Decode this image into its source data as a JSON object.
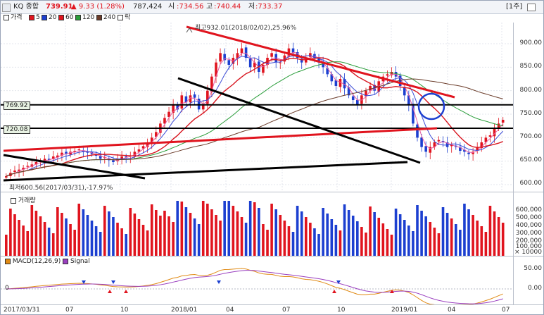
{
  "header": {
    "code": "KQ 종합",
    "price": "739.91",
    "change": "▲ 9.33 (1.28%)",
    "volume": "787,424",
    "open_label": "시",
    "open": ":734.56",
    "high_label": "고",
    "high": ":740.44",
    "low_label": "저",
    "low": ":733.37",
    "period": "[1주]"
  },
  "legend": {
    "price": "가격",
    "ma5": "5",
    "ma20": "20",
    "ma60": "60",
    "ma120": "120",
    "ma240": "240",
    "label": "락"
  },
  "annotations": {
    "high": "최고932.01(2018/02/02),25.96%",
    "low": "최저600.56(2017/03/31),-17.97%",
    "level1": "769.92",
    "level2": "720.08"
  },
  "price_axis": [
    "900.00",
    "850.00",
    "800.00",
    "750.00",
    "700.00",
    "650.00",
    "600.00"
  ],
  "volume_pane": {
    "title": "거래량",
    "ticks": [
      "600,000",
      "500,000",
      "400,000",
      "300,000",
      "200,000",
      "100,000"
    ],
    "unit": "× 10000"
  },
  "macd_pane": {
    "title": "MACD(12,26,9)",
    "signal": "Signal",
    "ticks": [
      "50.00",
      "0.00"
    ],
    "left_value": "0"
  },
  "x_axis": [
    "2017/03/31",
    "07",
    "10",
    "2018/01",
    "04",
    "07",
    "10",
    "2019/01",
    "04",
    "07"
  ],
  "colors": {
    "up": "#e0141e",
    "down": "#1c3fd0",
    "trend_red": "#e0141e",
    "trend_black": "#000000",
    "circle": "#1c3fd0"
  },
  "chart_data": {
    "type": "candlestick",
    "ylim": [
      585,
      945
    ],
    "close": [
      618,
      625,
      630,
      632,
      636,
      640,
      643,
      648,
      650,
      655,
      652,
      660,
      662,
      668,
      666,
      670,
      672,
      675,
      670,
      668,
      665,
      662,
      655,
      658,
      652,
      648,
      655,
      660,
      658,
      662,
      670,
      675,
      682,
      690,
      700,
      712,
      730,
      742,
      755,
      770,
      760,
      790,
      775,
      790,
      785,
      760,
      770,
      800,
      830,
      860,
      880,
      865,
      855,
      870,
      880,
      890,
      870,
      850,
      860,
      840,
      855,
      870,
      880,
      860,
      860,
      875,
      890,
      880,
      870,
      860,
      870,
      880,
      870,
      860,
      850,
      835,
      820,
      810,
      825,
      805,
      790,
      780,
      770,
      790,
      800,
      810,
      800,
      820,
      830,
      835,
      840,
      830,
      810,
      790,
      770,
      730,
      700,
      680,
      670,
      680,
      690,
      695,
      690,
      680,
      685,
      680,
      672,
      670,
      665,
      670,
      680,
      690,
      700,
      705,
      720,
      730,
      738
    ]
  }
}
